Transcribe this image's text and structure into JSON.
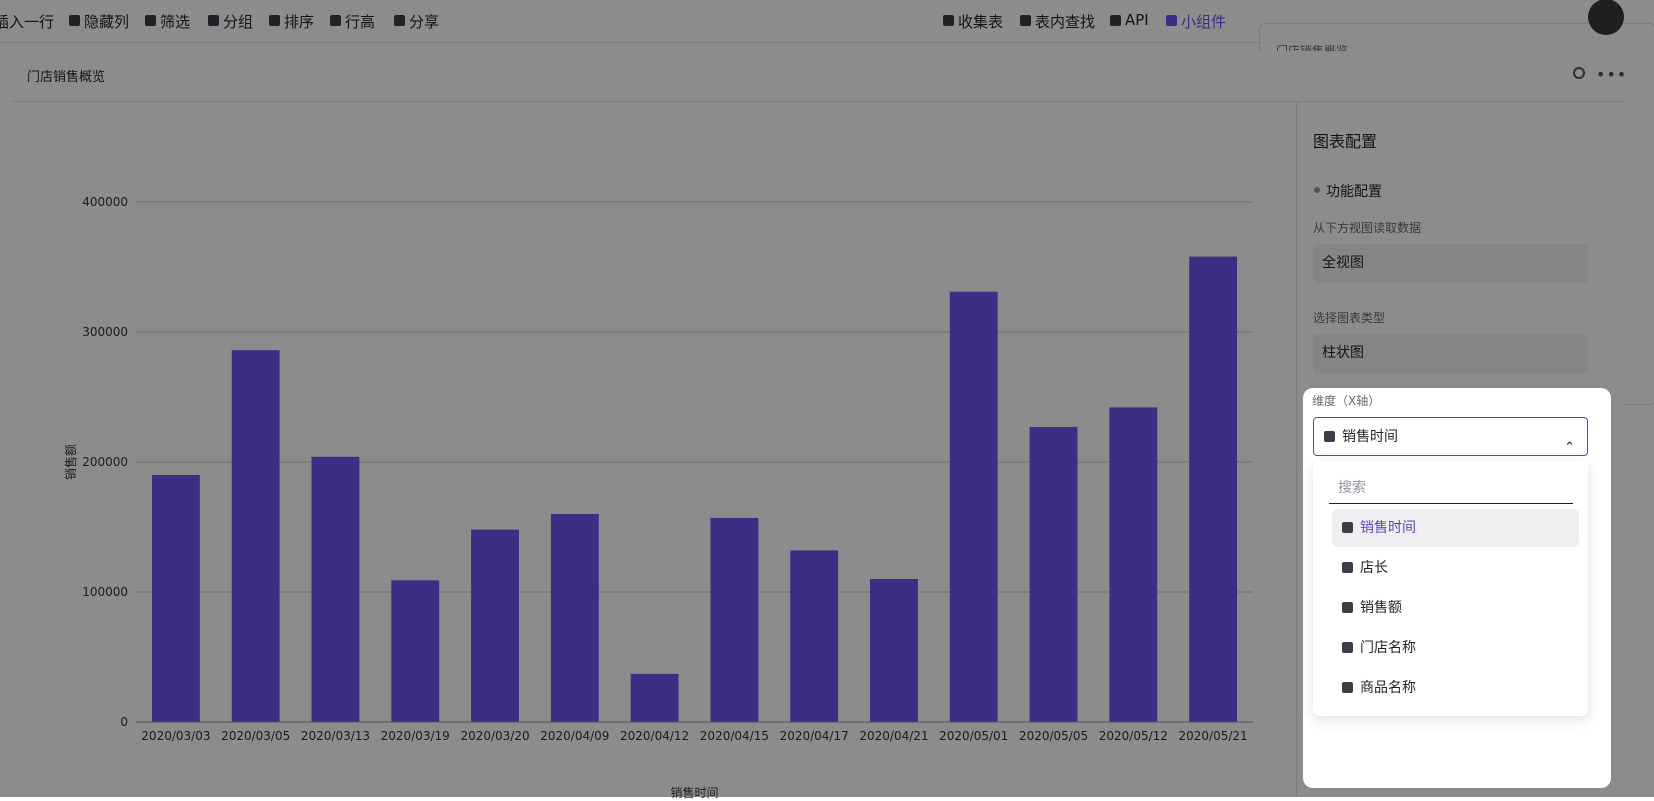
{
  "toolbar": {
    "left_items": [
      "插入一行",
      "隐藏列",
      "筛选",
      "分组",
      "排序",
      "行高",
      "分享"
    ],
    "right_items": [
      "收集表",
      "表内查找",
      "API",
      "小组件"
    ]
  },
  "background_panel_title": "门店销售概览",
  "modal": {
    "title": "门店销售概览"
  },
  "chart_data": {
    "type": "bar",
    "categories": [
      "2020/03/03",
      "2020/03/05",
      "2020/03/13",
      "2020/03/19",
      "2020/03/20",
      "2020/04/09",
      "2020/04/12",
      "2020/04/15",
      "2020/04/17",
      "2020/04/21",
      "2020/05/01",
      "2020/05/05",
      "2020/05/12",
      "2020/05/21"
    ],
    "values": [
      190000,
      286000,
      204000,
      109000,
      148000,
      160000,
      37000,
      157000,
      132000,
      110000,
      331000,
      227000,
      242000,
      358000
    ],
    "color": "#6f52f2",
    "x_label": "销售时间",
    "y_label": "销售额",
    "ylim": [
      0,
      400000
    ],
    "yticks": [
      0,
      100000,
      200000,
      300000,
      400000
    ],
    "grid": true
  },
  "config": {
    "title": "图表配置",
    "section": "功能配置",
    "fields": [
      {
        "label": "从下方视图读取数据",
        "value": "全视图"
      },
      {
        "label": "选择图表类型",
        "value": "柱状图"
      },
      {
        "label": "维度（X轴）",
        "value": "销售时间"
      }
    ],
    "search_placeholder": "搜索",
    "options": [
      "销售时间",
      "店长",
      "销售额",
      "门店名称",
      "商品名称"
    ]
  }
}
